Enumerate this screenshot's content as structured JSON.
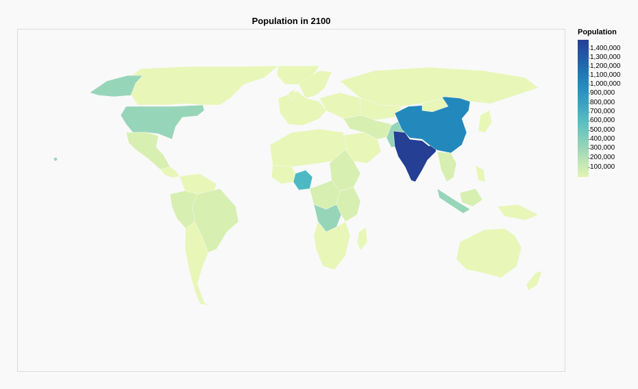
{
  "title": "Population in 2100",
  "legend": {
    "title": "Population",
    "labels": [
      "1,400,000",
      "1,300,000",
      "1,200,000",
      "1,100,000",
      "1,000,000",
      "900,000",
      "800,000",
      "700,000",
      "600,000",
      "500,000",
      "400,000",
      "300,000",
      "200,000",
      "100,000"
    ]
  },
  "colors": {
    "background": "#f9f9f9",
    "scale_high": "#243f94",
    "scale_low": "#edf8b1",
    "india": "#243f94",
    "china": "#2389bd",
    "nigeria": "#4db9c2",
    "mid": "#97d5b9",
    "low": "#d7efb0",
    "lowest": "#e8f6b8"
  }
}
